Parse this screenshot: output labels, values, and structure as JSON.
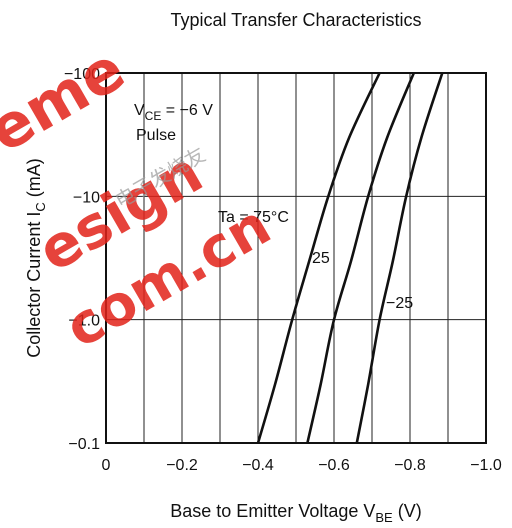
{
  "chart_data": {
    "type": "line",
    "title": "Typical Transfer Characteristics",
    "xlabel": {
      "main": "Base to Emitter Voltage  V",
      "sub": "BE",
      "unit": "  (V)"
    },
    "ylabel": {
      "main": "Collector Current  I",
      "sub": "C",
      "unit": "  (mA)"
    },
    "xlim": [
      0,
      -1.0
    ],
    "ylim": [
      -0.1,
      -100
    ],
    "y_scale": "log",
    "grid": true,
    "x_ticks": [
      {
        "value": 0,
        "label": "0"
      },
      {
        "value": -0.2,
        "label": "−0.2"
      },
      {
        "value": -0.4,
        "label": "−0.4"
      },
      {
        "value": -0.6,
        "label": "−0.6"
      },
      {
        "value": -0.8,
        "label": "−0.8"
      },
      {
        "value": -1.0,
        "label": "−1.0"
      }
    ],
    "y_ticks": [
      {
        "value": -0.1,
        "label": "−0.1"
      },
      {
        "value": -1.0,
        "label": "−1.0"
      },
      {
        "value": -10,
        "label": "−10"
      },
      {
        "value": -100,
        "label": "−100"
      }
    ],
    "conditions": {
      "vce_prefix": "V",
      "vce_sub": "CE",
      "vce_value": " = −6 V",
      "pulse": "Pulse"
    },
    "series": [
      {
        "name": "Ta = 75°C",
        "x": [
          -0.4,
          -0.445,
          -0.49,
          -0.535,
          -0.585,
          -0.64,
          -0.72
        ],
        "y": [
          -0.1,
          -0.3,
          -1.0,
          -3.0,
          -10,
          -30,
          -100
        ]
      },
      {
        "name": "25",
        "x": [
          -0.53,
          -0.565,
          -0.6,
          -0.645,
          -0.69,
          -0.74,
          -0.81
        ],
        "y": [
          -0.1,
          -0.3,
          -1.0,
          -3.0,
          -10,
          -30,
          -100
        ]
      },
      {
        "name": "−25",
        "x": [
          -0.66,
          -0.69,
          -0.72,
          -0.755,
          -0.79,
          -0.83,
          -0.885
        ],
        "y": [
          -0.1,
          -0.3,
          -1.0,
          -3.0,
          -10,
          -30,
          -100
        ]
      }
    ]
  },
  "watermark": {
    "line1": "eme",
    "line2": "esign",
    "line3": "com.cn",
    "chinese": "电子发烧友",
    "color": "#e2231a"
  }
}
